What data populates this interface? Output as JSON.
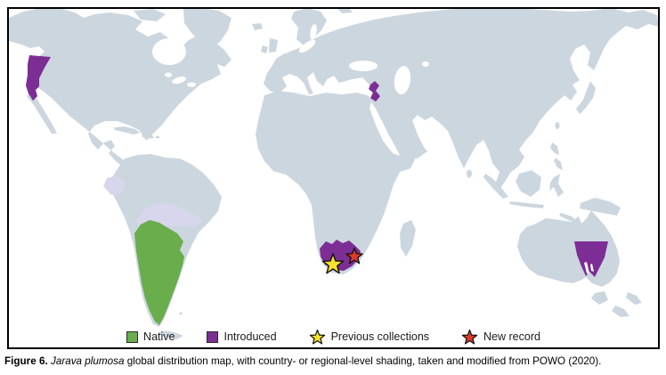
{
  "figure": {
    "caption": {
      "label": "Figure 6.",
      "species": "Jarava plumosa",
      "text": "global distribution map, with country- or regional-level shading, taken and modified from POWO (2020)."
    }
  },
  "legend": {
    "items": [
      {
        "label": "Native",
        "swatch": "square",
        "color": "#69ad4d"
      },
      {
        "label": "Introduced",
        "swatch": "square",
        "color": "#7c2e94"
      },
      {
        "label": "Previous collections",
        "swatch": "star",
        "color": "#f8e22c"
      },
      {
        "label": "New record",
        "swatch": "star",
        "color": "#dd3b28"
      }
    ]
  },
  "map": {
    "colors": {
      "ocean": "#ffffff",
      "land": "#ccd6df",
      "land_shaded_light": "#d8d6ec",
      "native": "#69ad4d",
      "introduced": "#7c2e94",
      "star_previous": "#f8e22c",
      "star_new": "#dd3b28",
      "frame": "#000000"
    },
    "regions": {
      "native": "southern South America (Argentina, Uruguay, southern Brazil, central Chile)",
      "introduced": [
        "western USA (California-Oregon)",
        "Israel-Jordan",
        "southwestern South Africa",
        "South Australia"
      ],
      "markers": [
        {
          "type": "previous-collections",
          "location": "Western Cape, South Africa"
        },
        {
          "type": "new-record",
          "location": "Eastern Cape, South Africa"
        }
      ]
    }
  }
}
